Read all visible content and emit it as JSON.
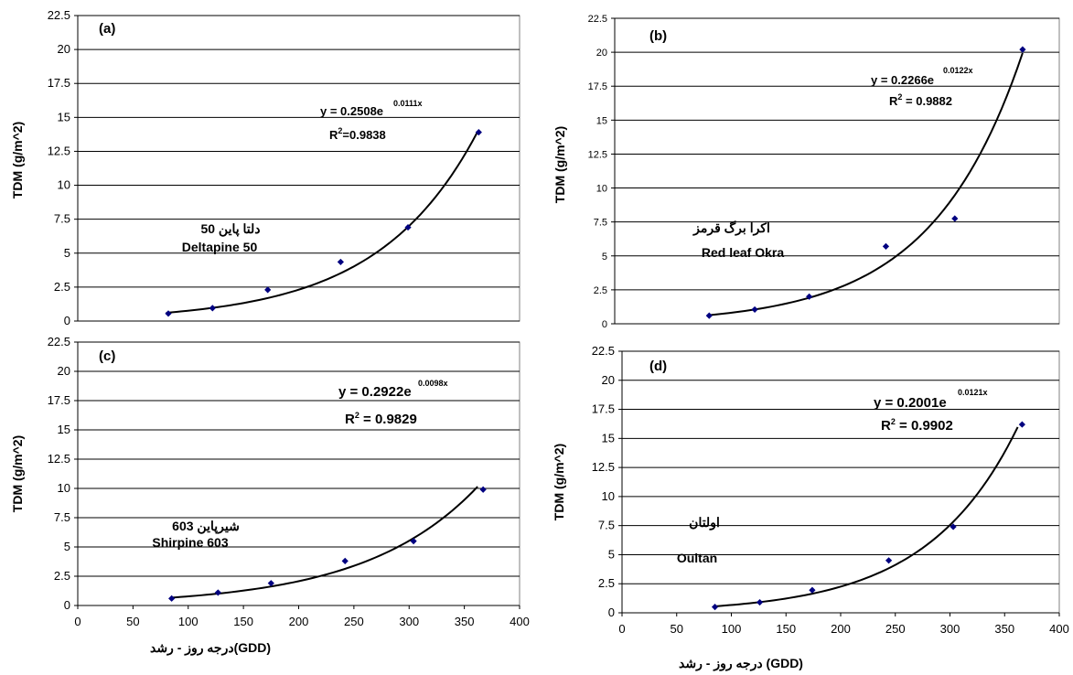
{
  "chart_data": [
    {
      "type": "scatter",
      "panel_label": "(a)",
      "cultivar_fa": "دلتا پاین 50",
      "cultivar_en": "Deltapine 50",
      "ylabel": "TDM (g/m^2)",
      "xlabel": "",
      "ylim": [
        0,
        22.5
      ],
      "yticks": [
        "0",
        "2.5",
        "5",
        "7.5",
        "10",
        "12.5",
        "15",
        "17.5",
        "20",
        "22.5"
      ],
      "xticks": [],
      "points": [
        [
          82,
          0.55
        ],
        [
          122,
          0.95
        ],
        [
          172,
          2.3
        ],
        [
          238,
          4.35
        ],
        [
          299,
          6.9
        ],
        [
          363,
          13.9
        ]
      ],
      "trend": {
        "a": 0.2508,
        "b": 0.0111,
        "x_from": 80,
        "x_to": 362
      },
      "equation_base": "y = 0.2508e",
      "equation_exp": "0.0111x",
      "r2_label": "R",
      "r2_sup": "2",
      "r2_value": "=0.9838",
      "grid": true,
      "legend": "none",
      "marker_color": "#000080"
    },
    {
      "type": "scatter",
      "panel_label": "(b)",
      "cultivar_fa": "اکرا برگ قرمز",
      "cultivar_en": "Red leaf Okra",
      "ylabel": "TDM (g/m^2)",
      "xlabel": "",
      "ylim": [
        0,
        22.5
      ],
      "yticks": [
        "0",
        "2.5",
        "5",
        "7.5",
        "10",
        "12.5",
        "15",
        "17.5",
        "20",
        "22.5"
      ],
      "xticks": [],
      "points": [
        [
          85,
          0.6
        ],
        [
          126,
          1.05
        ],
        [
          175,
          2.0
        ],
        [
          244,
          5.7
        ],
        [
          306,
          7.75
        ],
        [
          367,
          20.2
        ]
      ],
      "trend": {
        "a": 0.2266,
        "b": 0.0122,
        "x_from": 84,
        "x_to": 367
      },
      "equation_base": "y = 0.2266e",
      "equation_exp": "0.0122x",
      "r2_label": "R",
      "r2_sup": "2",
      "r2_value": " = 0.9882",
      "grid": true,
      "legend": "none",
      "marker_color": "#000080"
    },
    {
      "type": "scatter",
      "panel_label": "(c)",
      "cultivar_fa": "شیرپاین 603",
      "cultivar_en": "Shirpine 603",
      "ylabel": "TDM (g/m^2)",
      "xlabel": "درجه   روز - رشد(GDD)",
      "ylim": [
        0,
        22.5
      ],
      "xlim": [
        0,
        400
      ],
      "yticks": [
        "0",
        "2.5",
        "5",
        "7.5",
        "10",
        "12.5",
        "15",
        "17.5",
        "20",
        "22.5"
      ],
      "xticks": [
        "0",
        "50",
        "100",
        "150",
        "200",
        "250",
        "300",
        "350",
        "400"
      ],
      "points": [
        [
          85,
          0.6
        ],
        [
          127,
          1.1
        ],
        [
          175,
          1.9
        ],
        [
          242,
          3.8
        ],
        [
          304,
          5.5
        ],
        [
          367,
          9.9
        ]
      ],
      "trend": {
        "a": 0.2922,
        "b": 0.0098,
        "x_from": 84,
        "x_to": 362
      },
      "equation_base": "y = 0.2922e",
      "equation_exp": "0.0098x",
      "r2_label": "R",
      "r2_sup": "2",
      "r2_value": " = 0.9829",
      "grid": true,
      "legend": "none",
      "marker_color": "#000080"
    },
    {
      "type": "scatter",
      "panel_label": "(d)",
      "cultivar_fa": "اولتان",
      "cultivar_en": "Oultan",
      "ylabel": "TDM (g/m^2)",
      "xlabel": "درجه  روز - رشد (GDD)",
      "ylim": [
        0,
        22.5
      ],
      "xlim": [
        0,
        400
      ],
      "yticks": [
        "0",
        "2.5",
        "5",
        "7.5",
        "10",
        "12.5",
        "15",
        "17.5",
        "20",
        "22.5"
      ],
      "xticks": [
        "0",
        "50",
        "100",
        "150",
        "200",
        "250",
        "300",
        "350",
        "400"
      ],
      "points": [
        [
          85,
          0.5
        ],
        [
          126,
          0.9
        ],
        [
          174,
          1.95
        ],
        [
          244,
          4.5
        ],
        [
          303,
          7.4
        ],
        [
          366,
          16.2
        ]
      ],
      "trend": {
        "a": 0.2001,
        "b": 0.0121,
        "x_from": 84,
        "x_to": 362
      },
      "equation_base": "y = 0.2001e",
      "equation_exp": "0.0121x",
      "r2_label": "R",
      "r2_sup": "2",
      "r2_value": " = 0.9902",
      "grid": true,
      "legend": "none",
      "marker_color": "#000080"
    }
  ]
}
